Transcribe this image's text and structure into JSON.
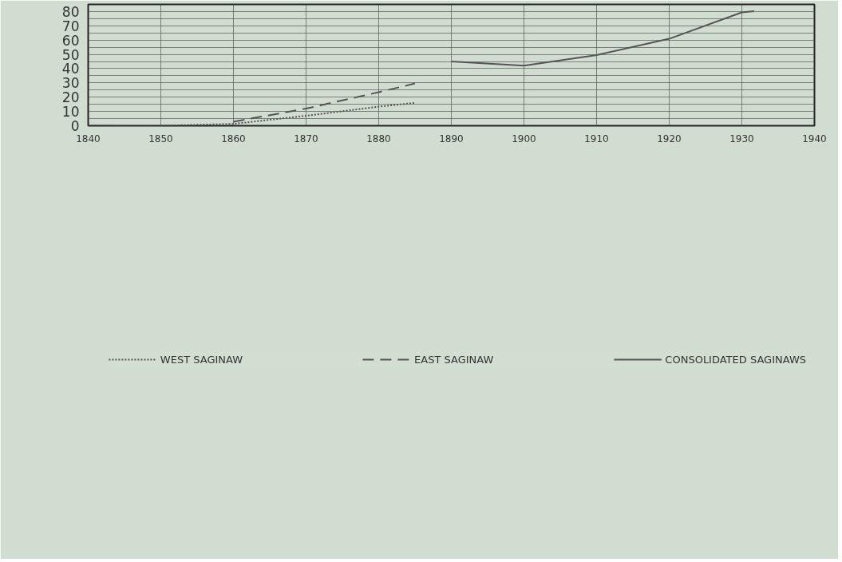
{
  "chart_data": {
    "type": "line",
    "xlim": [
      1840,
      1940
    ],
    "xticks": [
      1840,
      1850,
      1860,
      1870,
      1880,
      1890,
      1900,
      1910,
      1920,
      1930,
      1940
    ],
    "ylim": [
      0,
      85
    ],
    "yticks": [
      0,
      {
        "value": 5,
        "label": null
      },
      10,
      {
        "value": 15,
        "label": null
      },
      20,
      {
        "value": 25,
        "label": null
      },
      30,
      {
        "value": 35,
        "label": null
      },
      40,
      {
        "value": 45,
        "label": null
      },
      50,
      {
        "value": 55,
        "label": null
      },
      60,
      {
        "value": 65,
        "label": null
      },
      70,
      {
        "value": 75,
        "label": null
      },
      80
    ],
    "grid": true,
    "legend": "bottom",
    "marker": "none",
    "series": [
      {
        "name": "WEST SAGINAW",
        "color": "#555555",
        "line_style": "dotted",
        "x": [
          1840,
          1845,
          1850,
          1860,
          1870,
          1880,
          1885
        ],
        "values": [
          0.3,
          0,
          0,
          1.3,
          7,
          13.4,
          16
        ]
      },
      {
        "name": "EAST SAGINAW",
        "color": "#555555",
        "line_style": "dashed",
        "x": [
          1860,
          1870,
          1880,
          1885
        ],
        "values": [
          2.8,
          12,
          23.5,
          29.6
        ]
      },
      {
        "name": "CONSOLIDATED SAGINAWS",
        "color": "#555555",
        "line_style": "solid",
        "x": [
          1890,
          1900,
          1910,
          1920,
          1930,
          1931.7
        ],
        "values": [
          45,
          42.1,
          49.5,
          60.9,
          79.4,
          80.3
        ]
      }
    ]
  }
}
